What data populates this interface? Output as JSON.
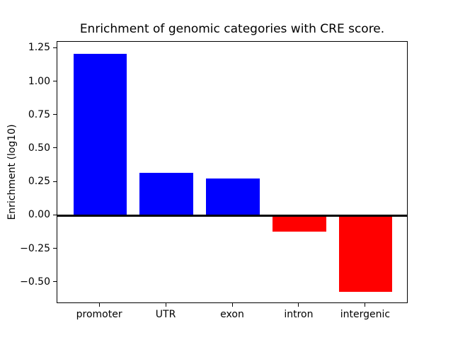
{
  "chart_data": {
    "type": "bar",
    "title": "Enrichment of genomic categories with CRE score.",
    "xlabel": "",
    "ylabel": "Enrichment (log10)",
    "categories": [
      "promoter",
      "UTR",
      "exon",
      "intron",
      "intergenic"
    ],
    "values": [
      1.21,
      0.32,
      0.28,
      -0.12,
      -0.57
    ],
    "bar_colors": [
      "#0000ff",
      "#0000ff",
      "#0000ff",
      "#ff0000",
      "#ff0000"
    ],
    "positive_color": "#0000ff",
    "negative_color": "#ff0000",
    "yticks": [
      1.25,
      1.0,
      0.75,
      0.5,
      0.25,
      0.0,
      -0.25,
      -0.5
    ],
    "ytick_labels": [
      "1.25",
      "1.00",
      "0.75",
      "0.50",
      "0.25",
      "0.00",
      "−0.25",
      "−0.50"
    ],
    "ylim": [
      -0.659,
      1.299
    ],
    "xlim": [
      -0.64,
      4.64
    ],
    "bar_width_fraction": 0.8,
    "zero_line": true,
    "grid": false,
    "legend": null,
    "axis_color": "#000000",
    "background_color": "#ffffff"
  }
}
